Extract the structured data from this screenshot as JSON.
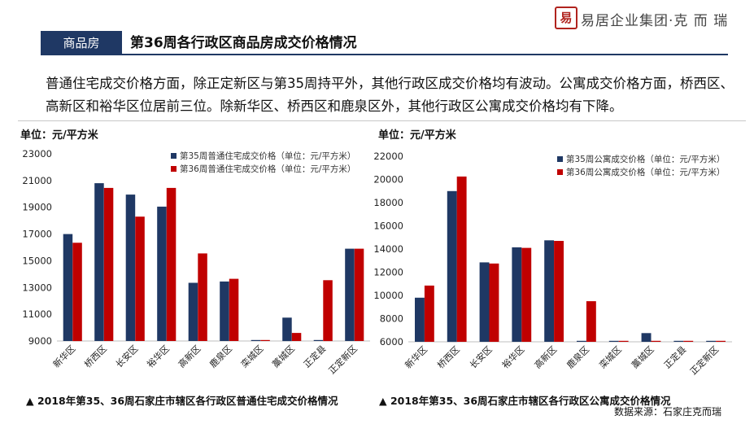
{
  "brand": {
    "mark": "易",
    "name": "易居企业集团·克 而 瑞"
  },
  "header": {
    "section_tag": "商品房",
    "title": "第36周各行政区商品房成交价格情况"
  },
  "description": "普通住宅成交价格方面，除正定新区与第35周持平外，其他行政区成交价格均有波动。公寓成交价格方面，桥西区、高新区和裕华区位居前三位。除新华区、桥西区和鹿泉区外，其他行政区公寓成交价格均有下降。",
  "source": "数据来源：石家庄克而瑞",
  "colors": {
    "navy": "#1f3864",
    "red": "#c00000",
    "header_bg": "#1f3864"
  },
  "chart_data": [
    {
      "type": "bar",
      "unit_label": "单位：元/平方米",
      "caption": "▲ 2018年第35、36周石家庄市辖区各行政区普通住宅成交价格情况",
      "categories": [
        "新华区",
        "桥西区",
        "长安区",
        "裕华区",
        "高新区",
        "鹿泉区",
        "栾城区",
        "藁城区",
        "正定县",
        "正定新区"
      ],
      "ylim": [
        9000,
        23000
      ],
      "yticks": [
        9000,
        11000,
        13000,
        15000,
        17000,
        19000,
        21000,
        23000
      ],
      "grid": false,
      "legend_position": "top-right",
      "series": [
        {
          "name": "第35周普通住宅成交价格（单位：元/平方米）",
          "color": "#1f3864",
          "values": [
            17000,
            20800,
            19950,
            19050,
            13350,
            13450,
            9000,
            10750,
            9000,
            15900
          ]
        },
        {
          "name": "第36周普通住宅成交价格（单位：元/平方米）",
          "color": "#c00000",
          "values": [
            16350,
            20450,
            18300,
            20450,
            15550,
            13650,
            9000,
            9600,
            13550,
            15900
          ]
        }
      ]
    },
    {
      "type": "bar",
      "unit_label": "单位：元/平方米",
      "caption": "▲ 2018年第35、36周石家庄市辖区各行政区公寓成交价格情况",
      "categories": [
        "新华区",
        "桥西区",
        "长安区",
        "裕华区",
        "高新区",
        "鹿泉区",
        "栾城区",
        "藁城区",
        "正定县",
        "正定新区"
      ],
      "ylim": [
        6000,
        22000
      ],
      "yticks": [
        6000,
        8000,
        10000,
        12000,
        14000,
        16000,
        18000,
        20000,
        22000
      ],
      "grid": false,
      "legend_position": "top-right",
      "series": [
        {
          "name": "第35周公寓成交价格（单位：元/平方米）",
          "color": "#1f3864",
          "values": [
            9800,
            19000,
            12850,
            14150,
            14750,
            6000,
            6000,
            6750,
            6000,
            6000
          ]
        },
        {
          "name": "第36周公寓成交价格（单位：元/平方米）",
          "color": "#c00000",
          "values": [
            10850,
            20250,
            12750,
            14100,
            14700,
            9500,
            6000,
            6000,
            6000,
            6000
          ]
        }
      ]
    }
  ]
}
